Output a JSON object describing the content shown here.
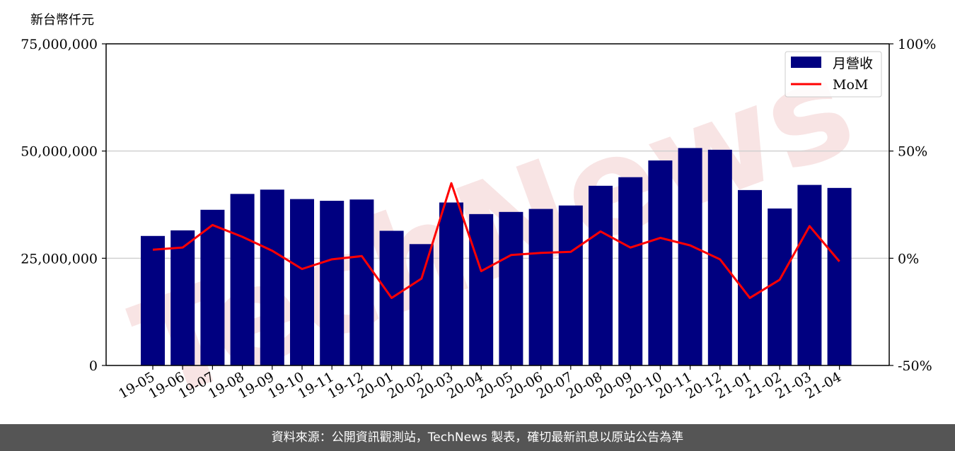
{
  "watermark": {
    "text": "TechNews"
  },
  "footer": {
    "source_text": "資料來源：公開資訊觀測站，TechNews 製表，確切最新訊息以原站公告為準"
  },
  "chart_data": {
    "type": "bar",
    "left_axis_unit": "新台幣仟元",
    "categories": [
      "19-05",
      "19-06",
      "19-07",
      "19-08",
      "19-09",
      "19-10",
      "19-11",
      "19-12",
      "20-01",
      "20-02",
      "20-03",
      "20-04",
      "20-05",
      "20-06",
      "20-07",
      "20-08",
      "20-09",
      "20-10",
      "20-11",
      "20-12",
      "21-01",
      "21-02",
      "21-03",
      "21-04"
    ],
    "series": [
      {
        "name": "月營收",
        "type": "bar",
        "axis": "left",
        "color": "#000080",
        "values": [
          30200000,
          31500000,
          36300000,
          40000000,
          41000000,
          38800000,
          38400000,
          38700000,
          31400000,
          28300000,
          38000000,
          35300000,
          35800000,
          36500000,
          37300000,
          41900000,
          43900000,
          47800000,
          50700000,
          50300000,
          40900000,
          36600000,
          42100000,
          41400000
        ]
      },
      {
        "name": "MoM",
        "type": "line",
        "axis": "right",
        "color": "#ff0000",
        "values": [
          4.0,
          5.0,
          15.5,
          10.0,
          3.5,
          -5.0,
          -0.5,
          1.0,
          -18.5,
          -9.5,
          35.0,
          -6.0,
          1.5,
          2.5,
          3.0,
          12.5,
          5.0,
          9.5,
          6.0,
          -0.5,
          -18.5,
          -10.0,
          15.0,
          -1.5
        ]
      }
    ],
    "y_left": {
      "min": 0,
      "max": 75000000,
      "ticks": [
        0,
        25000000,
        50000000,
        75000000
      ],
      "tick_labels": [
        "0",
        "25,000,000",
        "50,000,000",
        "75,000,000"
      ]
    },
    "y_right": {
      "min": -50,
      "max": 100,
      "ticks": [
        -50,
        0,
        50,
        100
      ],
      "tick_labels": [
        "-50%",
        "0%",
        "50%",
        "100%"
      ]
    },
    "grid": "horizontal",
    "legend": {
      "position": "top-right"
    }
  }
}
